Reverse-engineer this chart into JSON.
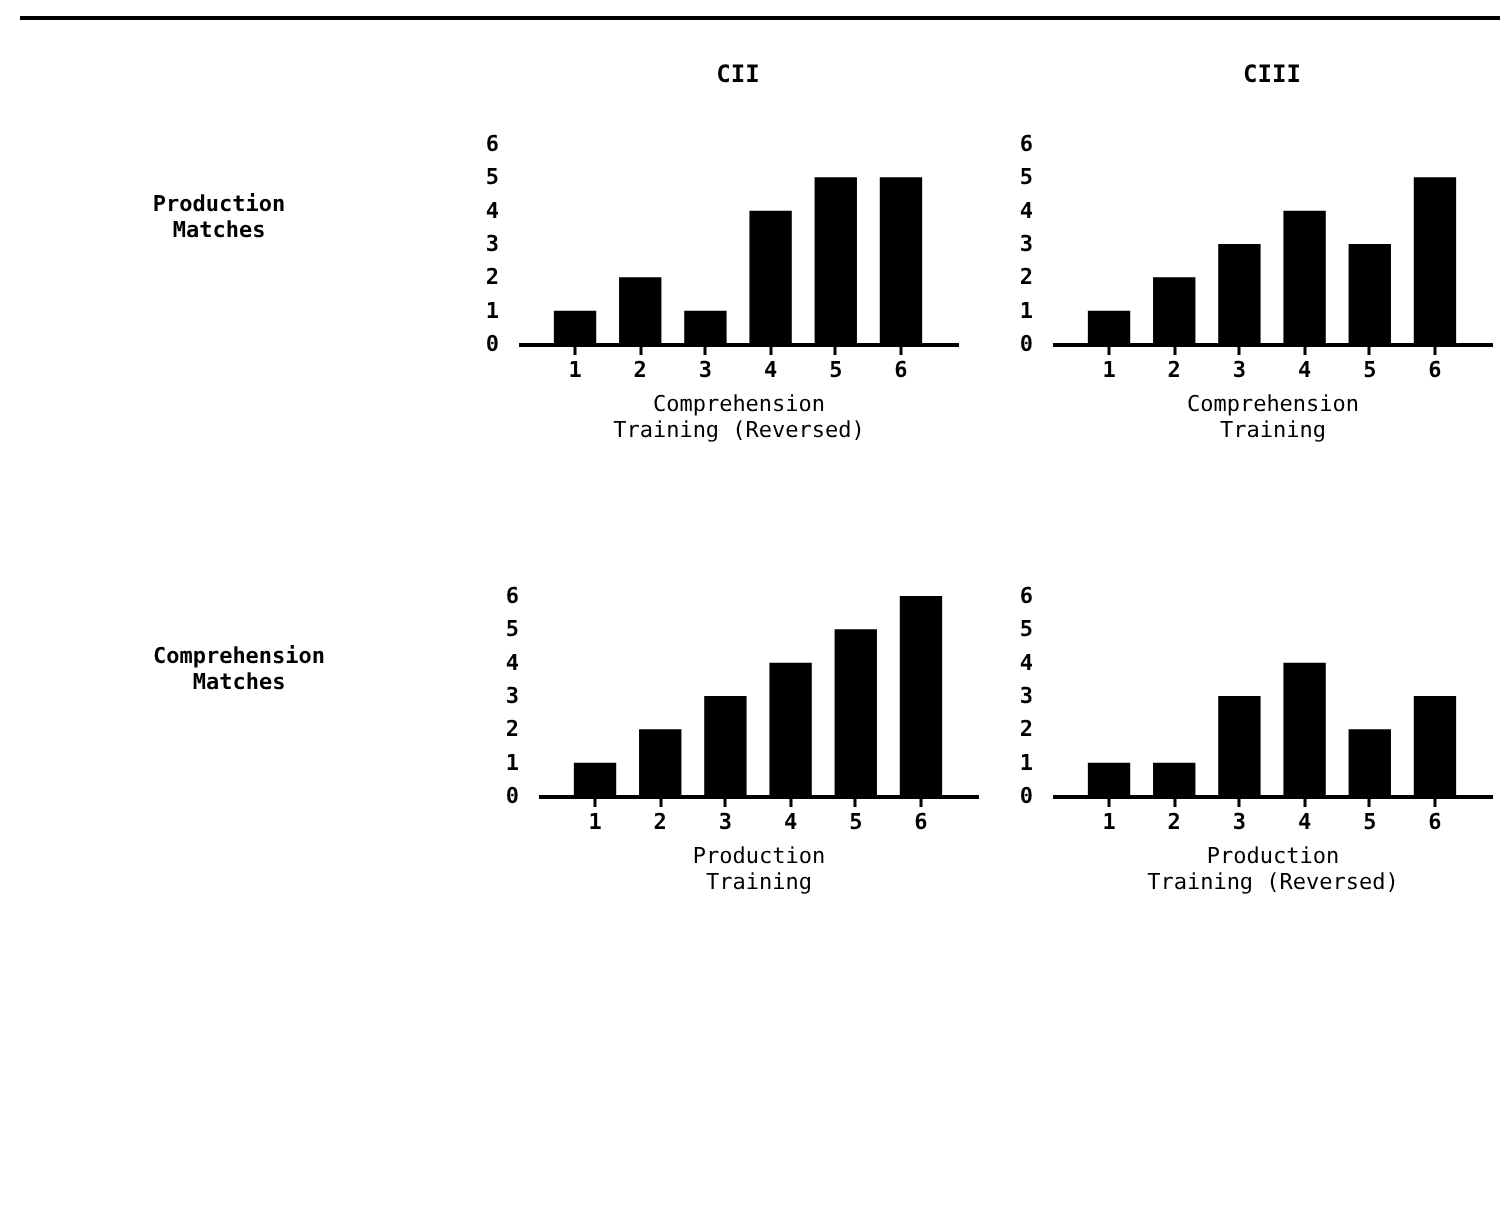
{
  "chart_data": [
    {
      "type": "bar",
      "title": "CII",
      "ylabel": "Production Matches",
      "xlabel": "Comprehension Training (Reversed)",
      "categories": [
        "1",
        "2",
        "3",
        "4",
        "5",
        "6"
      ],
      "values": [
        1,
        2,
        1,
        4,
        5,
        5
      ],
      "color": "#000000",
      "ylim": [
        0,
        6
      ],
      "yticks": [
        0,
        1,
        2,
        3,
        4,
        5,
        6
      ],
      "grid": false
    },
    {
      "type": "bar",
      "title": "CIII",
      "xlabel": "Comprehension Training",
      "categories": [
        "1",
        "2",
        "3",
        "4",
        "5",
        "6"
      ],
      "values": [
        1,
        2,
        3,
        4,
        3,
        5
      ],
      "color": "#000000",
      "ylim": [
        0,
        6
      ],
      "yticks": [
        0,
        1,
        2,
        3,
        4,
        5,
        6
      ],
      "grid": false
    },
    {
      "type": "bar",
      "ylabel": "Comprehension Matches",
      "xlabel": "Production Training",
      "categories": [
        "1",
        "2",
        "3",
        "4",
        "5",
        "6"
      ],
      "values": [
        1,
        2,
        3,
        4,
        5,
        6
      ],
      "color": "#000000",
      "ylim": [
        0,
        6
      ],
      "yticks": [
        0,
        1,
        2,
        3,
        4,
        5,
        6
      ],
      "grid": false
    },
    {
      "type": "bar",
      "xlabel": "Production Training (Reversed)",
      "categories": [
        "1",
        "2",
        "3",
        "4",
        "5",
        "6"
      ],
      "values": [
        1,
        1,
        3,
        4,
        2,
        3
      ],
      "color": "#000000",
      "ylim": [
        0,
        6
      ],
      "yticks": [
        0,
        1,
        2,
        3,
        4,
        5,
        6
      ],
      "grid": false
    }
  ]
}
